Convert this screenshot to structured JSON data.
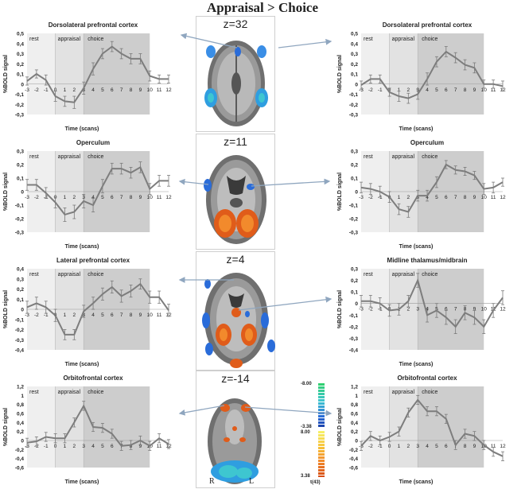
{
  "figure": {
    "title": "Appraisal  > Choice",
    "colorbar": {
      "neg_top": "-8.00",
      "neg_bottom": "-3.38",
      "pos_top": "8.00",
      "pos_bottom": "3.38",
      "stat": "t(43)"
    },
    "orientation": {
      "right": "R",
      "left": "L"
    },
    "slices": [
      {
        "z": "z=32"
      },
      {
        "z": "z=11"
      },
      {
        "z": "z=4"
      },
      {
        "z": "z=-14"
      }
    ]
  },
  "chart_data": [
    {
      "type": "line",
      "id": "p0",
      "title": "Dorsolateral prefrontal cortex",
      "xlabel": "Time (scans)",
      "ylabel": "%BOLD signal",
      "phases": [
        "rest",
        "appraisal",
        "choice"
      ],
      "x": [
        -3,
        -2,
        -1,
        0,
        1,
        2,
        3,
        4,
        5,
        6,
        7,
        8,
        9,
        10,
        11,
        12
      ],
      "values": [
        0.03,
        0.1,
        0.04,
        -0.12,
        -0.17,
        -0.18,
        -0.04,
        0.15,
        0.3,
        0.37,
        0.3,
        0.25,
        0.25,
        0.08,
        0.05,
        0.05
      ],
      "errors": [
        0.04,
        0.04,
        0.05,
        0.05,
        0.05,
        0.06,
        0.06,
        0.06,
        0.05,
        0.05,
        0.05,
        0.05,
        0.05,
        0.05,
        0.04,
        0.04
      ],
      "ylim": [
        -0.3,
        0.5
      ],
      "yticks": [
        "0,5",
        "0,4",
        "0,3",
        "0,2",
        "0,1",
        "0",
        "-0,1",
        "-0,2",
        "-0,3"
      ],
      "ytick_vals": [
        0.5,
        0.4,
        0.3,
        0.2,
        0.1,
        0,
        -0.1,
        -0.2,
        -0.3
      ]
    },
    {
      "type": "line",
      "id": "p1",
      "title": "Dorsolateral prefrontal cortex",
      "xlabel": "Time (scans)",
      "ylabel": "%BOLD signal",
      "phases": [
        "rest",
        "appraisal",
        "choice"
      ],
      "x": [
        -3,
        -2,
        -1,
        0,
        1,
        2,
        3,
        4,
        5,
        6,
        7,
        8,
        9,
        10,
        11,
        12
      ],
      "values": [
        -0.01,
        0.05,
        0.05,
        -0.08,
        -0.12,
        -0.14,
        -0.1,
        0.05,
        0.22,
        0.32,
        0.26,
        0.19,
        0.16,
        0.0,
        0.0,
        -0.02
      ],
      "errors": [
        0.04,
        0.04,
        0.04,
        0.04,
        0.05,
        0.05,
        0.05,
        0.06,
        0.05,
        0.05,
        0.05,
        0.05,
        0.05,
        0.04,
        0.04,
        0.05
      ],
      "ylim": [
        -0.3,
        0.5
      ],
      "yticks": [
        "0,5",
        "0,4",
        "0,3",
        "0,2",
        "0,1",
        "0",
        "-0,1",
        "-0,2",
        "-0,3"
      ],
      "ytick_vals": [
        0.5,
        0.4,
        0.3,
        0.2,
        0.1,
        0,
        -0.1,
        -0.2,
        -0.3
      ]
    },
    {
      "type": "line",
      "id": "p2",
      "title": "Operculum",
      "xlabel": "Time (scans)",
      "ylabel": "%BOLD signal",
      "phases": [
        "rest",
        "appraisal",
        "choice"
      ],
      "x": [
        -3,
        -2,
        -1,
        0,
        1,
        2,
        3,
        4,
        5,
        6,
        7,
        8,
        9,
        10,
        11,
        12
      ],
      "values": [
        0.05,
        0.05,
        -0.01,
        -0.08,
        -0.17,
        -0.15,
        -0.07,
        -0.1,
        0.04,
        0.17,
        0.17,
        0.14,
        0.18,
        0.02,
        0.08,
        0.08
      ],
      "errors": [
        0.04,
        0.04,
        0.04,
        0.04,
        0.05,
        0.05,
        0.05,
        0.05,
        0.05,
        0.04,
        0.04,
        0.04,
        0.04,
        0.04,
        0.04,
        0.04
      ],
      "ylim": [
        -0.3,
        0.3
      ],
      "yticks": [
        "0,3",
        "0,2",
        "0,1",
        "0",
        "-0,1",
        "-0,2",
        "-0,3"
      ],
      "ytick_vals": [
        0.3,
        0.2,
        0.1,
        0,
        -0.1,
        -0.2,
        -0.3
      ]
    },
    {
      "type": "line",
      "id": "p3",
      "title": "Operculum",
      "xlabel": "Time (scans)",
      "ylabel": "%BOLD signal",
      "phases": [
        "rest",
        "appraisal",
        "choice"
      ],
      "x": [
        -3,
        -2,
        -1,
        0,
        1,
        2,
        3,
        4,
        5,
        6,
        7,
        8,
        9,
        10,
        11,
        12
      ],
      "values": [
        0.03,
        0.02,
        0.0,
        -0.04,
        -0.13,
        -0.15,
        -0.03,
        -0.03,
        0.07,
        0.2,
        0.16,
        0.15,
        0.12,
        0.02,
        0.03,
        0.07
      ],
      "errors": [
        0.04,
        0.04,
        0.04,
        0.04,
        0.04,
        0.04,
        0.04,
        0.04,
        0.04,
        0.03,
        0.03,
        0.03,
        0.03,
        0.04,
        0.04,
        0.03
      ],
      "ylim": [
        -0.3,
        0.3
      ],
      "yticks": [
        "0,3",
        "0,2",
        "0,1",
        "0",
        "-0,1",
        "-0,2",
        "-0,3"
      ],
      "ytick_vals": [
        0.3,
        0.2,
        0.1,
        0,
        -0.1,
        -0.2,
        -0.3
      ]
    },
    {
      "type": "line",
      "id": "p4",
      "title": "Lateral prefrontal cortex",
      "xlabel": "Time (scans)",
      "ylabel": "%BOLD signal",
      "phases": [
        "rest",
        "appraisal",
        "choice"
      ],
      "x": [
        -3,
        -2,
        -1,
        0,
        1,
        2,
        3,
        4,
        5,
        6,
        7,
        8,
        9,
        10,
        11,
        12
      ],
      "values": [
        0.02,
        0.06,
        0.02,
        -0.06,
        -0.25,
        -0.25,
        -0.02,
        0.06,
        0.15,
        0.22,
        0.13,
        0.18,
        0.25,
        0.12,
        0.12,
        -0.01
      ],
      "errors": [
        0.06,
        0.06,
        0.06,
        0.06,
        0.05,
        0.05,
        0.06,
        0.06,
        0.06,
        0.06,
        0.06,
        0.06,
        0.05,
        0.06,
        0.06,
        0.06
      ],
      "ylim": [
        -0.4,
        0.4
      ],
      "yticks": [
        "0,4",
        "0,3",
        "0,2",
        "0,1",
        "0",
        "-0,1",
        "-0,2",
        "-0,3",
        "-0,4"
      ],
      "ytick_vals": [
        0.4,
        0.3,
        0.2,
        0.1,
        0,
        -0.1,
        -0.2,
        -0.3,
        -0.4
      ]
    },
    {
      "type": "line",
      "id": "p5",
      "title": "Midline thalamus/midbrain",
      "xlabel": "Time (scans)",
      "ylabel": "%BOLD signal",
      "phases": [
        "rest",
        "appraisal",
        "choice"
      ],
      "x": [
        -3,
        -2,
        -1,
        0,
        1,
        2,
        3,
        4,
        5,
        6,
        7,
        8,
        9,
        10,
        11,
        12
      ],
      "values": [
        0.02,
        0.02,
        0.0,
        -0.06,
        -0.05,
        0.02,
        0.2,
        -0.1,
        -0.06,
        -0.12,
        -0.2,
        -0.08,
        -0.12,
        -0.2,
        -0.06,
        0.05
      ],
      "errors": [
        0.05,
        0.05,
        0.05,
        0.05,
        0.05,
        0.05,
        0.06,
        0.06,
        0.06,
        0.06,
        0.06,
        0.06,
        0.06,
        0.06,
        0.06,
        0.06
      ],
      "ylim": [
        -0.4,
        0.3
      ],
      "yticks": [
        "0,3",
        "0,2",
        "0,1",
        "0",
        "-0,1",
        "-0,2",
        "-0,3",
        "-0,4"
      ],
      "ytick_vals": [
        0.3,
        0.2,
        0.1,
        0,
        -0.1,
        -0.2,
        -0.3,
        -0.4
      ]
    },
    {
      "type": "line",
      "id": "p6",
      "title": "Orbitofrontal cortex",
      "xlabel": "Time (scans)",
      "ylabel": "%BOLD signal",
      "phases": [
        "rest",
        "appraisal",
        "choice"
      ],
      "x": [
        -3,
        -2,
        -1,
        0,
        1,
        2,
        3,
        4,
        5,
        6,
        7,
        8,
        9,
        10,
        11,
        12
      ],
      "values": [
        -0.05,
        -0.02,
        0.08,
        0.05,
        0.05,
        0.4,
        0.77,
        0.3,
        0.28,
        0.15,
        -0.12,
        -0.1,
        0.0,
        -0.12,
        0.05,
        -0.08
      ],
      "errors": [
        0.1,
        0.1,
        0.1,
        0.1,
        0.1,
        0.1,
        0.1,
        0.1,
        0.1,
        0.1,
        0.1,
        0.1,
        0.1,
        0.1,
        0.1,
        0.1
      ],
      "ylim": [
        -0.6,
        1.2
      ],
      "yticks": [
        "1,2",
        "1",
        "0,8",
        "0,6",
        "0,4",
        "0,2",
        "0",
        "-0,2",
        "-0,4",
        "-0,6"
      ],
      "ytick_vals": [
        1.2,
        1.0,
        0.8,
        0.6,
        0.4,
        0.2,
        0,
        -0.2,
        -0.4,
        -0.6
      ]
    },
    {
      "type": "line",
      "id": "p7",
      "title": "Orbitofrontal cortex",
      "xlabel": "Time (scans)",
      "ylabel": "%BOLD signal",
      "phases": [
        "rest",
        "appraisal",
        "choice"
      ],
      "x": [
        -3,
        -2,
        -1,
        0,
        1,
        2,
        3,
        4,
        5,
        6,
        7,
        8,
        9,
        10,
        11,
        12
      ],
      "values": [
        -0.12,
        0.1,
        0.0,
        0.08,
        0.2,
        0.62,
        0.9,
        0.65,
        0.65,
        0.48,
        -0.1,
        0.15,
        0.1,
        -0.1,
        -0.25,
        -0.35
      ],
      "errors": [
        0.1,
        0.1,
        0.1,
        0.1,
        0.1,
        0.1,
        0.1,
        0.1,
        0.1,
        0.1,
        0.1,
        0.1,
        0.1,
        0.1,
        0.1,
        0.1
      ],
      "ylim": [
        -0.6,
        1.2
      ],
      "yticks": [
        "1,2",
        "1",
        "0,8",
        "0,6",
        "0,4",
        "0,2",
        "0",
        "-0,2",
        "-0,4",
        "-0,6"
      ],
      "ytick_vals": [
        1.2,
        1.0,
        0.8,
        0.6,
        0.4,
        0.2,
        0,
        -0.2,
        -0.4,
        -0.6
      ]
    }
  ]
}
